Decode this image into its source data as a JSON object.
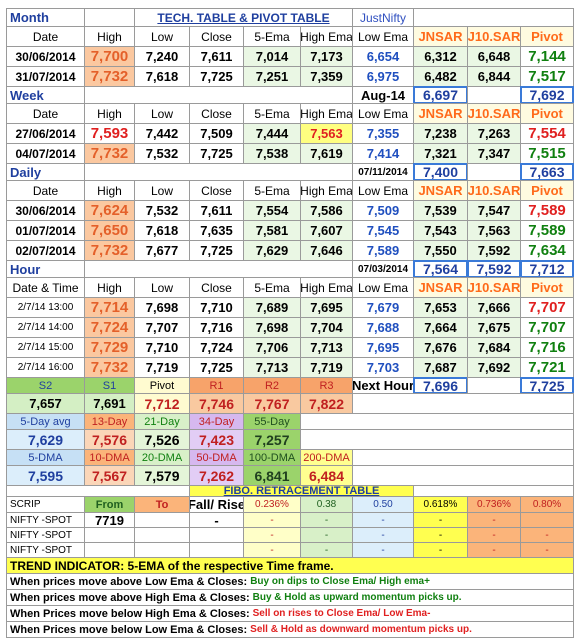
{
  "rows": [
    [
      "Month",
      "TECH. TABLE  &  PIVOT TABLE",
      "JustNifty"
    ],
    [
      "Date",
      "High",
      "Low",
      "Close",
      "5-Ema",
      "High Ema",
      "Low Ema",
      "JNSAR",
      "J10.SAR",
      "Pivot"
    ],
    [
      "30/06/2014",
      "7,700",
      "7,240",
      "7,611",
      "7,014",
      "7,173",
      "6,654",
      "6,312",
      "6,648",
      "7,144"
    ],
    [
      "31/07/2014",
      "7,732",
      "7,618",
      "7,725",
      "7,251",
      "7,359",
      "6,975",
      "6,482",
      "6,844",
      "7,517"
    ],
    [
      "Week",
      "Aug-14",
      "6,697",
      "7,692"
    ],
    [
      "Date",
      "High",
      "Low",
      "Close",
      "5-Ema",
      "High Ema",
      "Low Ema",
      "JNSAR",
      "J10.SAR",
      "Pivot"
    ],
    [
      "27/06/2014",
      "7,593",
      "7,442",
      "7,509",
      "7,444",
      "7,563",
      "7,355",
      "7,238",
      "7,263",
      "7,554"
    ],
    [
      "04/07/2014",
      "7,732",
      "7,532",
      "7,725",
      "7,538",
      "7,619",
      "7,414",
      "7,321",
      "7,347",
      "7,515"
    ],
    [
      "Daily",
      "07/11/2014",
      "7,400",
      "7,663"
    ],
    [
      "Date",
      "High",
      "Low",
      "Close",
      "5-Ema",
      "High Ema",
      "Low Ema",
      "JNSAR",
      "J10.SAR",
      "Pivot"
    ],
    [
      "30/06/2014",
      "7,624",
      "7,532",
      "7,611",
      "7,554",
      "7,586",
      "7,509",
      "7,539",
      "7,547",
      "7,589"
    ],
    [
      "01/07/2014",
      "7,650",
      "7,618",
      "7,635",
      "7,581",
      "7,607",
      "7,545",
      "7,543",
      "7,563",
      "7,589"
    ],
    [
      "02/07/2014",
      "7,732",
      "7,677",
      "7,725",
      "7,629",
      "7,646",
      "7,589",
      "7,550",
      "7,592",
      "7,634"
    ],
    [
      "Hour",
      "07/03/2014",
      "7,564",
      "7,592",
      "7,712"
    ],
    [
      "Date & Time",
      "High",
      "Low",
      "Close",
      "5-Ema",
      "High Ema",
      "Low Ema",
      "JNSAR",
      "J10.SAR",
      "Pivot"
    ],
    [
      "2/7/14 13:00",
      "7,714",
      "7,698",
      "7,710",
      "7,689",
      "7,695",
      "7,679",
      "7,653",
      "7,666",
      "7,707"
    ],
    [
      "2/7/14 14:00",
      "7,724",
      "7,707",
      "7,716",
      "7,698",
      "7,704",
      "7,688",
      "7,664",
      "7,675",
      "7,707"
    ],
    [
      "2/7/14 15:00",
      "7,729",
      "7,710",
      "7,724",
      "7,706",
      "7,713",
      "7,695",
      "7,676",
      "7,684",
      "7,716"
    ],
    [
      "2/7/14 16:00",
      "7,732",
      "7,719",
      "7,725",
      "7,713",
      "7,719",
      "7,703",
      "7,687",
      "7,692",
      "7,721"
    ],
    [
      "S2",
      "S1",
      "Pivot",
      "R1",
      "R2",
      "R3",
      "Next Hour",
      "7,696",
      "7,725"
    ],
    [
      "7,657",
      "7,691",
      "7,712",
      "7,746",
      "7,767",
      "7,822"
    ],
    [
      "5-Day avg",
      "13-Day",
      "21-Day",
      "34-Day",
      "55-Day"
    ],
    [
      "7,629",
      "7,576",
      "7,526",
      "7,423",
      "7,257"
    ],
    [
      "5-DMA",
      "10-DMA",
      "20-DMA",
      "50-DMA",
      "100-DMA",
      "200-DMA"
    ],
    [
      "7,595",
      "7,567",
      "7,579",
      "7,262",
      "6,841",
      "6,484"
    ],
    [
      "FIBO. RETRACEMENT TABLE"
    ],
    [
      "SCRIP",
      "From",
      "To",
      "Fall/ Rise",
      "0.236%",
      "0.38",
      "0.50",
      "0.618%",
      "0.736%",
      "0.80%"
    ],
    [
      "NIFTY -SPOT",
      "7719",
      "-",
      "-",
      "-",
      "-",
      "-",
      "-"
    ],
    [
      "NIFTY -SPOT",
      "-",
      "-",
      "-",
      "-",
      "-",
      "-"
    ],
    [
      "NIFTY -SPOT",
      "-",
      "-",
      "-",
      "-",
      "-",
      "-"
    ],
    [
      "TREND INDICATOR: 5-EMA of the respective Time frame."
    ],
    [
      "When prices move above Low Ema & Closes:",
      "Buy on dips to Close Ema/ High ema+"
    ],
    [
      "When prices move above High Ema & Closes:",
      "Buy & Hold as upward momentum picks up."
    ],
    [
      "When Prices move below High Ema & Closes:",
      "Sell on rises to Close Ema/ Low Ema-"
    ],
    [
      "When Prices move below Low Ema & Closes:",
      "Sell & Hold as downward momentum picks up."
    ]
  ]
}
